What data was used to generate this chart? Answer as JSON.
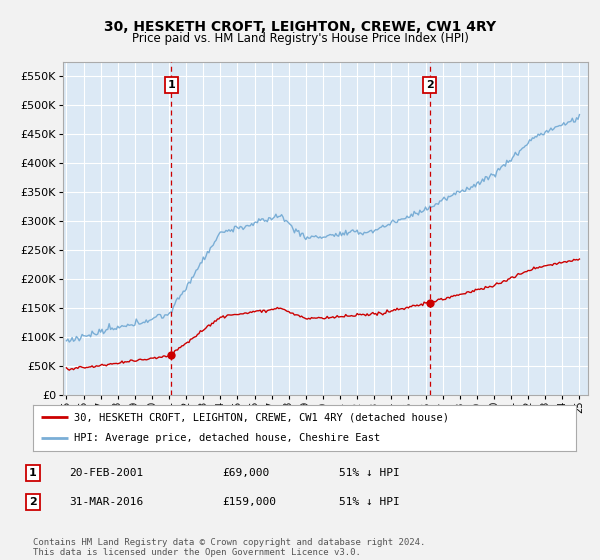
{
  "title": "30, HESKETH CROFT, LEIGHTON, CREWE, CW1 4RY",
  "subtitle": "Price paid vs. HM Land Registry's House Price Index (HPI)",
  "y_ticks": [
    0,
    50000,
    100000,
    150000,
    200000,
    250000,
    300000,
    350000,
    400000,
    450000,
    500000,
    550000
  ],
  "ylim": [
    0,
    575000
  ],
  "background_color": "#dce9f5",
  "fig_background": "#f2f2f2",
  "grid_color": "#ffffff",
  "red_line_color": "#cc0000",
  "blue_line_color": "#7aaed6",
  "marker1_date": 2001.125,
  "marker1_price": 69000,
  "marker1_label": "1",
  "marker2_date": 2016.25,
  "marker2_price": 159000,
  "marker2_label": "2",
  "legend_label_red": "30, HESKETH CROFT, LEIGHTON, CREWE, CW1 4RY (detached house)",
  "legend_label_blue": "HPI: Average price, detached house, Cheshire East",
  "table_row1": [
    "1",
    "20-FEB-2001",
    "£69,000",
    "51% ↓ HPI"
  ],
  "table_row2": [
    "2",
    "31-MAR-2016",
    "£159,000",
    "51% ↓ HPI"
  ],
  "footer": "Contains HM Land Registry data © Crown copyright and database right 2024.\nThis data is licensed under the Open Government Licence v3.0.",
  "vline_color": "#cc0000"
}
